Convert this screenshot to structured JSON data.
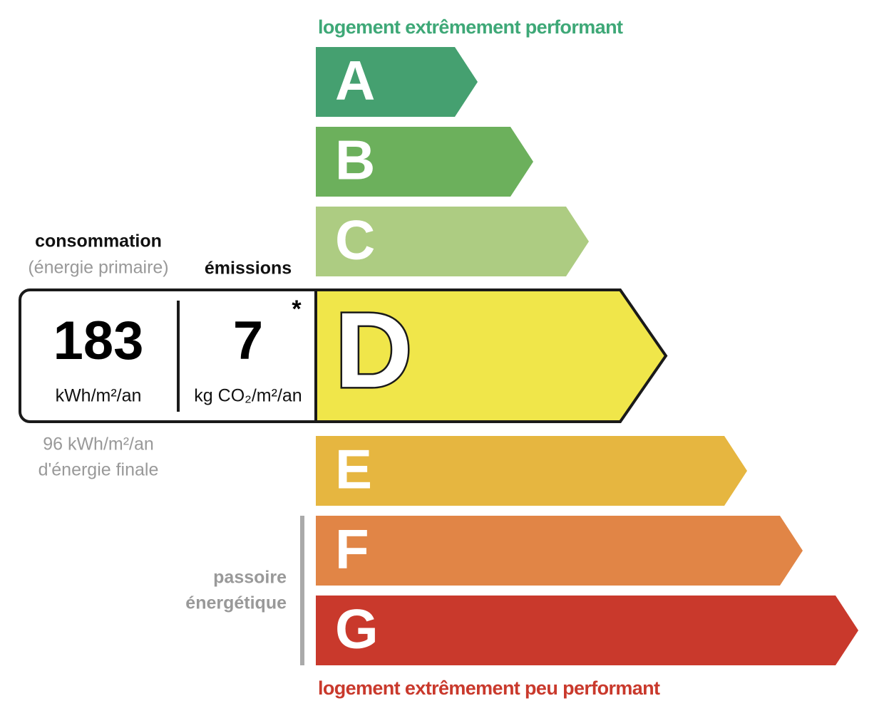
{
  "top_label": "logement extrêmement performant",
  "bottom_label": "logement extrêmement peu performant",
  "classes": [
    {
      "letter": "A",
      "color": "#45a070"
    },
    {
      "letter": "B",
      "color": "#6cb05c"
    },
    {
      "letter": "C",
      "color": "#adcc82"
    },
    {
      "letter": "D",
      "color": "#f0e64a"
    },
    {
      "letter": "E",
      "color": "#e6b640"
    },
    {
      "letter": "F",
      "color": "#e18546"
    },
    {
      "letter": "G",
      "color": "#c9392c"
    }
  ],
  "current": {
    "class": "D",
    "consumption": {
      "heading": "consommation",
      "subheading": "(énergie primaire)",
      "value": 183,
      "unit": "kWh/m²/an"
    },
    "emissions": {
      "heading": "émissions",
      "value": 7,
      "unit": "kg CO₂/m²/an",
      "note_marker": "*"
    },
    "final_energy": [
      "96 kWh/m²/an",
      "d'énergie finale"
    ]
  },
  "passoire": [
    "passoire",
    "énergétique"
  ]
}
